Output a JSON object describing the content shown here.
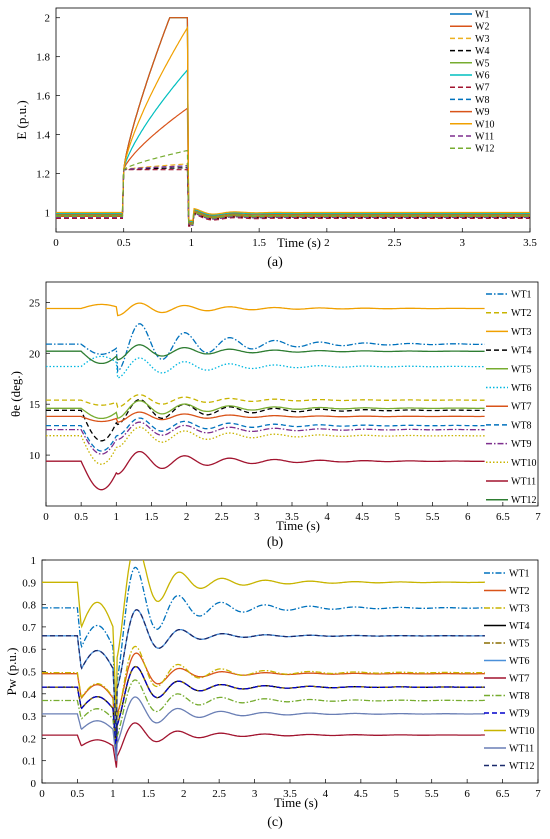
{
  "chart_data": [
    {
      "type": "line",
      "caption": "(a)",
      "xlabel": "Time (s)",
      "ylabel": "E (p.u.)",
      "xlim": [
        0,
        3.5
      ],
      "ylim": [
        0.9,
        2.05
      ],
      "xticks": [
        "0",
        "0.5",
        "1",
        "1.5",
        "2",
        "2.5",
        "3",
        "3.5"
      ],
      "yticks": [
        "1",
        "1.2",
        "1.4",
        "1.6",
        "1.8",
        "2"
      ],
      "legend_position": "top-right",
      "series": [
        {
          "name": "W1",
          "color": "#0072BD",
          "dash": "solid",
          "base": 0.98,
          "peak": 2.0
        },
        {
          "name": "W2",
          "color": "#D95319",
          "dash": "solid",
          "base": 0.99,
          "peak": 1.54
        },
        {
          "name": "W3",
          "color": "#EDB120",
          "dash": "dash",
          "base": 0.98,
          "peak": 1.25
        },
        {
          "name": "W4",
          "color": "#000000",
          "dash": "dash",
          "base": 0.975,
          "peak": 1.23
        },
        {
          "name": "W5",
          "color": "#77AC30",
          "dash": "solid",
          "base": 0.985,
          "peak": 2.0
        },
        {
          "name": "W6",
          "color": "#00BFBF",
          "dash": "solid",
          "base": 0.995,
          "peak": 1.74
        },
        {
          "name": "W7",
          "color": "#A2142F",
          "dash": "dash",
          "base": 0.97,
          "peak": 1.22
        },
        {
          "name": "W8",
          "color": "#0072BD",
          "dash": "dash",
          "base": 0.975,
          "peak": 1.24
        },
        {
          "name": "W9",
          "color": "#D95319",
          "dash": "solid",
          "base": 0.98,
          "peak": 2.0
        },
        {
          "name": "W10",
          "color": "#F0A000",
          "dash": "solid",
          "base": 1.0,
          "peak": 1.96
        },
        {
          "name": "W11",
          "color": "#7E2F8E",
          "dash": "dash",
          "base": 0.975,
          "peak": 1.24
        },
        {
          "name": "W12",
          "color": "#77AC30",
          "dash": "dash",
          "base": 0.98,
          "peak": 1.32
        }
      ]
    },
    {
      "type": "line",
      "caption": "(b)",
      "xlabel": "Time (s)",
      "ylabel": "θe (deg.)",
      "xlim": [
        0,
        7
      ],
      "ylim": [
        5,
        27
      ],
      "xticks": [
        "0",
        "0.5",
        "1",
        "1.5",
        "2",
        "2.5",
        "3",
        "3.5",
        "4",
        "4.5",
        "5",
        "5.5",
        "6",
        "6.5",
        "7"
      ],
      "yticks": [
        "10",
        "15",
        "20",
        "25"
      ],
      "legend_position": "right",
      "series": [
        {
          "name": "WT1",
          "color": "#0072BD",
          "dash": "dashdot",
          "base": 20.9,
          "dip": 1.0,
          "osc": 1.9
        },
        {
          "name": "WT2",
          "color": "#C8B400",
          "dash": "dash",
          "base": 15.4,
          "dip": 0.5,
          "osc": 0.5
        },
        {
          "name": "WT3",
          "color": "#F0A000",
          "dash": "solid",
          "base": 24.4,
          "dip": -0.4,
          "osc": 0.5
        },
        {
          "name": "WT4",
          "color": "#000000",
          "dash": "dash",
          "base": 14.4,
          "dip": 3.0,
          "osc": 1.0
        },
        {
          "name": "WT5",
          "color": "#77AC30",
          "dash": "solid",
          "base": 14.6,
          "dip": 1.0,
          "osc": 0.7
        },
        {
          "name": "WT6",
          "color": "#00B7E0",
          "dash": "dot",
          "base": 18.7,
          "dip": -1.0,
          "osc": 0.8
        },
        {
          "name": "WT7",
          "color": "#D95319",
          "dash": "solid",
          "base": 13.8,
          "dip": 0.5,
          "osc": 0.4
        },
        {
          "name": "WT8",
          "color": "#0072BD",
          "dash": "dash",
          "base": 12.9,
          "dip": 2.5,
          "osc": 0.7
        },
        {
          "name": "WT9",
          "color": "#7E2F8E",
          "dash": "dashdot",
          "base": 12.5,
          "dip": 2.4,
          "osc": 0.7
        },
        {
          "name": "WT10",
          "color": "#C8B400",
          "dash": "dot",
          "base": 11.9,
          "dip": 2.8,
          "osc": 0.8
        },
        {
          "name": "WT11",
          "color": "#A2142F",
          "dash": "solid",
          "base": 9.4,
          "dip": 2.8,
          "osc": 0.9
        },
        {
          "name": "WT12",
          "color": "#2E7D32",
          "dash": "solid",
          "base": 20.2,
          "dip": 1.2,
          "osc": 0.6
        }
      ]
    },
    {
      "type": "line",
      "caption": "(c)",
      "xlabel": "Time (s)",
      "ylabel": "Pw (p.u.)",
      "xlim": [
        0,
        7
      ],
      "ylim": [
        0,
        1
      ],
      "xticks": [
        "0",
        "0.5",
        "1",
        "1.5",
        "2",
        "2.5",
        "3",
        "3.5",
        "4",
        "4.5",
        "5",
        "5.5",
        "6",
        "6.5",
        "7"
      ],
      "yticks": [
        "0",
        "0.1",
        "0.2",
        "0.3",
        "0.4",
        "0.5",
        "0.6",
        "0.7",
        "0.8",
        "0.9",
        "1"
      ],
      "legend_position": "right",
      "series": [
        {
          "name": "WT1",
          "color": "#0072BD",
          "dash": "dashdot",
          "base": 0.785,
          "osc": 0.09
        },
        {
          "name": "WT2",
          "color": "#D95319",
          "dash": "solid",
          "base": 0.49,
          "osc": 0.03
        },
        {
          "name": "WT3",
          "color": "#C8B400",
          "dash": "dashdot",
          "base": 0.495,
          "osc": 0.06
        },
        {
          "name": "WT4",
          "color": "#000000",
          "dash": "solid",
          "base": 0.43,
          "osc": 0.04
        },
        {
          "name": "WT5",
          "color": "#8A6D00",
          "dash": "dashdot",
          "base": 0.43,
          "osc": 0.04
        },
        {
          "name": "WT6",
          "color": "#4A90D9",
          "dash": "solid",
          "base": 0.66,
          "osc": 0.03
        },
        {
          "name": "WT7",
          "color": "#A2142F",
          "dash": "solid",
          "base": 0.215,
          "osc": 0.03
        },
        {
          "name": "WT8",
          "color": "#77AC30",
          "dash": "dashdot",
          "base": 0.37,
          "osc": 0.05
        },
        {
          "name": "WT9",
          "color": "#0000CC",
          "dash": "dash",
          "base": 0.43,
          "osc": 0.04
        },
        {
          "name": "WT10",
          "color": "#C8B400",
          "dash": "solid",
          "base": 0.9,
          "osc": 0.06
        },
        {
          "name": "WT11",
          "color": "#6A7FB5",
          "dash": "solid",
          "base": 0.31,
          "osc": 0.04
        },
        {
          "name": "WT12",
          "color": "#1A2A6C",
          "dash": "dash",
          "base": 0.66,
          "osc": 0.03
        }
      ]
    }
  ]
}
